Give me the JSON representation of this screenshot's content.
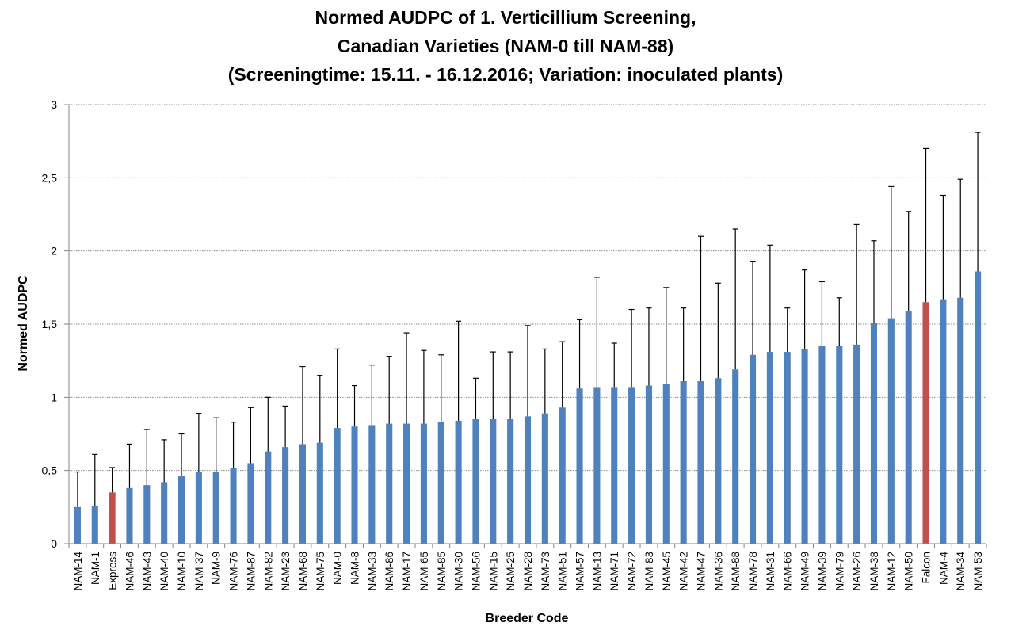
{
  "chart_data": {
    "type": "bar",
    "title_lines": [
      "Normed AUDPC of 1. Verticillium Screening,",
      "Canadian Varieties (NAM-0 till NAM-88)",
      "(Screeningtime: 15.11. - 16.12.2016; Variation: inoculated plants)"
    ],
    "xlabel": "Breeder Code",
    "ylabel": "Normed AUDPC",
    "ylim": [
      0,
      3
    ],
    "yticks": [
      0,
      0.5,
      1,
      1.5,
      2,
      2.5,
      3
    ],
    "ytick_labels": [
      "0",
      "0,5",
      "1",
      "1,5",
      "2",
      "2,5",
      "3"
    ],
    "grid": "horizontal dotted",
    "categories": [
      "NAM-14",
      "NAM-1",
      "Express",
      "NAM-46",
      "NAM-43",
      "NAM-40",
      "NAM-10",
      "NAM-37",
      "NAM-9",
      "NAM-76",
      "NAM-87",
      "NAM-82",
      "NAM-23",
      "NAM-68",
      "NAM-75",
      "NAM-0",
      "NAM-8",
      "NAM-33",
      "NAM-86",
      "NAM-17",
      "NAM-65",
      "NAM-85",
      "NAM-30",
      "NAM-56",
      "NAM-15",
      "NAM-25",
      "NAM-28",
      "NAM-73",
      "NAM-51",
      "NAM-57",
      "NAM-13",
      "NAM-71",
      "NAM-72",
      "NAM-83",
      "NAM-45",
      "NAM-42",
      "NAM-47",
      "NAM-36",
      "NAM-88",
      "NAM-78",
      "NAM-31",
      "NAM-66",
      "NAM-49",
      "NAM-39",
      "NAM-79",
      "NAM-26",
      "NAM-38",
      "NAM-12",
      "NAM-50",
      "Falcon",
      "NAM-4",
      "NAM-34",
      "NAM-53"
    ],
    "values": [
      0.25,
      0.26,
      0.35,
      0.38,
      0.4,
      0.42,
      0.46,
      0.49,
      0.49,
      0.52,
      0.55,
      0.63,
      0.66,
      0.68,
      0.69,
      0.79,
      0.8,
      0.81,
      0.82,
      0.82,
      0.82,
      0.83,
      0.84,
      0.85,
      0.85,
      0.85,
      0.87,
      0.89,
      0.93,
      1.06,
      1.07,
      1.07,
      1.07,
      1.08,
      1.09,
      1.11,
      1.11,
      1.13,
      1.19,
      1.29,
      1.31,
      1.31,
      1.33,
      1.35,
      1.35,
      1.36,
      1.51,
      1.54,
      1.59,
      1.65,
      1.67,
      1.68,
      1.86
    ],
    "error_upper": [
      0.49,
      0.61,
      0.52,
      0.68,
      0.78,
      0.71,
      0.75,
      0.89,
      0.86,
      0.83,
      0.93,
      1.0,
      0.94,
      1.21,
      1.15,
      1.33,
      1.08,
      1.22,
      1.28,
      1.44,
      1.32,
      1.29,
      1.52,
      1.13,
      1.31,
      1.31,
      1.49,
      1.33,
      1.38,
      1.53,
      1.82,
      1.37,
      1.6,
      1.61,
      1.75,
      1.61,
      2.1,
      1.78,
      2.15,
      1.93,
      2.04,
      1.61,
      1.87,
      1.79,
      1.68,
      2.18,
      2.07,
      2.44,
      2.27,
      2.7,
      2.38,
      2.49,
      2.81
    ],
    "colors": {
      "default": "#4f81bd",
      "highlight": "#c0504d"
    },
    "highlighted": [
      "Express",
      "Falcon"
    ]
  }
}
